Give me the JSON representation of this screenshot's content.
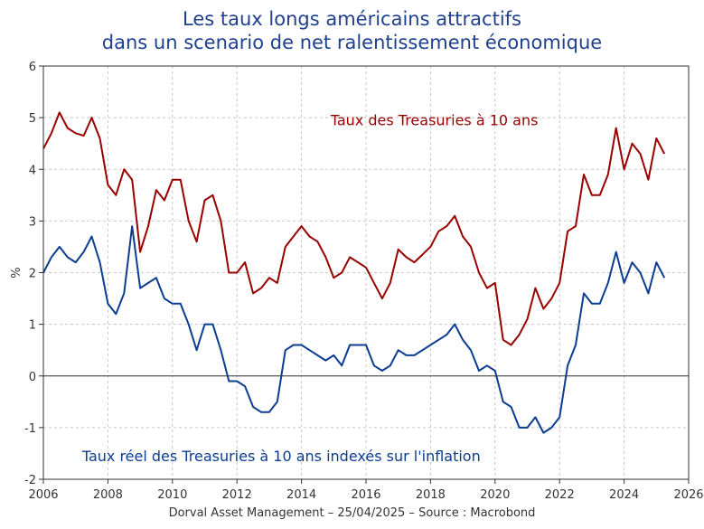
{
  "title": {
    "line1": "Les taux longs américains attractifs",
    "line2": "dans un scenario de net ralentissement économique"
  },
  "footer": {
    "text": "Dorval Asset Management – 25/04/2025 –  Source : Macrobond"
  },
  "colors": {
    "treasuries": "#990000",
    "real": "#0b3d91",
    "title": "#1f3f8f",
    "grid": "#c8c8c8",
    "zero_line": "#333333"
  },
  "chart_data": {
    "type": "line",
    "ylabel": "%",
    "xlabel": "",
    "xlim": [
      2006,
      2026
    ],
    "ylim": [
      -2,
      6
    ],
    "x_ticks": [
      "2006",
      "2008",
      "2010",
      "2012",
      "2014",
      "2016",
      "2018",
      "2020",
      "2022",
      "2024",
      "2026"
    ],
    "y_ticks": [
      "-2",
      "-1",
      "0",
      "1",
      "2",
      "3",
      "4",
      "5",
      "6"
    ],
    "grid": true,
    "series": [
      {
        "name": "Taux des Treasuries à 10 ans",
        "color": "#990000",
        "x": [
          2006.0,
          2006.25,
          2006.5,
          2006.75,
          2007.0,
          2007.25,
          2007.5,
          2007.75,
          2008.0,
          2008.25,
          2008.5,
          2008.75,
          2009.0,
          2009.25,
          2009.5,
          2009.75,
          2010.0,
          2010.25,
          2010.5,
          2010.75,
          2011.0,
          2011.25,
          2011.5,
          2011.75,
          2012.0,
          2012.25,
          2012.5,
          2012.75,
          2013.0,
          2013.25,
          2013.5,
          2013.75,
          2014.0,
          2014.25,
          2014.5,
          2014.75,
          2015.0,
          2015.25,
          2015.5,
          2015.75,
          2016.0,
          2016.25,
          2016.5,
          2016.75,
          2017.0,
          2017.25,
          2017.5,
          2017.75,
          2018.0,
          2018.25,
          2018.5,
          2018.75,
          2019.0,
          2019.25,
          2019.5,
          2019.75,
          2020.0,
          2020.25,
          2020.5,
          2020.75,
          2021.0,
          2021.25,
          2021.5,
          2021.75,
          2022.0,
          2022.25,
          2022.5,
          2022.75,
          2023.0,
          2023.25,
          2023.5,
          2023.75,
          2024.0,
          2024.25,
          2024.5,
          2024.75,
          2025.0,
          2025.25
        ],
        "values": [
          4.4,
          4.7,
          5.1,
          4.8,
          4.7,
          4.65,
          5.0,
          4.6,
          3.7,
          3.5,
          4.0,
          3.8,
          2.4,
          2.9,
          3.6,
          3.4,
          3.8,
          3.8,
          3.0,
          2.6,
          3.4,
          3.5,
          3.0,
          2.0,
          2.0,
          2.2,
          1.6,
          1.7,
          1.9,
          1.8,
          2.5,
          2.7,
          2.9,
          2.7,
          2.6,
          2.3,
          1.9,
          2.0,
          2.3,
          2.2,
          2.1,
          1.8,
          1.5,
          1.8,
          2.45,
          2.3,
          2.2,
          2.35,
          2.5,
          2.8,
          2.9,
          3.1,
          2.7,
          2.5,
          2.0,
          1.7,
          1.8,
          0.7,
          0.6,
          0.8,
          1.1,
          1.7,
          1.3,
          1.5,
          1.8,
          2.8,
          2.9,
          3.9,
          3.5,
          3.5,
          3.9,
          4.8,
          4.0,
          4.5,
          4.3,
          3.8,
          4.6,
          4.3
        ]
      },
      {
        "name": "Taux réel des Treasuries à 10 ans indexés sur l'inflation",
        "color": "#0b3d91",
        "x": [
          2006.0,
          2006.25,
          2006.5,
          2006.75,
          2007.0,
          2007.25,
          2007.5,
          2007.75,
          2008.0,
          2008.25,
          2008.5,
          2008.75,
          2009.0,
          2009.25,
          2009.5,
          2009.75,
          2010.0,
          2010.25,
          2010.5,
          2010.75,
          2011.0,
          2011.25,
          2011.5,
          2011.75,
          2012.0,
          2012.25,
          2012.5,
          2012.75,
          2013.0,
          2013.25,
          2013.5,
          2013.75,
          2014.0,
          2014.25,
          2014.5,
          2014.75,
          2015.0,
          2015.25,
          2015.5,
          2015.75,
          2016.0,
          2016.25,
          2016.5,
          2016.75,
          2017.0,
          2017.25,
          2017.5,
          2017.75,
          2018.0,
          2018.25,
          2018.5,
          2018.75,
          2019.0,
          2019.25,
          2019.5,
          2019.75,
          2020.0,
          2020.25,
          2020.5,
          2020.75,
          2021.0,
          2021.25,
          2021.5,
          2021.75,
          2022.0,
          2022.25,
          2022.5,
          2022.75,
          2023.0,
          2023.25,
          2023.5,
          2023.75,
          2024.0,
          2024.25,
          2024.5,
          2024.75,
          2025.0,
          2025.25
        ],
        "values": [
          2.0,
          2.3,
          2.5,
          2.3,
          2.2,
          2.4,
          2.7,
          2.2,
          1.4,
          1.2,
          1.6,
          2.9,
          1.7,
          1.8,
          1.9,
          1.5,
          1.4,
          1.4,
          1.0,
          0.5,
          1.0,
          1.0,
          0.5,
          -0.1,
          -0.1,
          -0.2,
          -0.6,
          -0.7,
          -0.7,
          -0.5,
          0.5,
          0.6,
          0.6,
          0.5,
          0.4,
          0.3,
          0.4,
          0.2,
          0.6,
          0.6,
          0.6,
          0.2,
          0.1,
          0.2,
          0.5,
          0.4,
          0.4,
          0.5,
          0.6,
          0.7,
          0.8,
          1.0,
          0.7,
          0.5,
          0.1,
          0.2,
          0.1,
          -0.5,
          -0.6,
          -1.0,
          -1.0,
          -0.8,
          -1.1,
          -1.0,
          -0.8,
          0.2,
          0.6,
          1.6,
          1.4,
          1.4,
          1.8,
          2.4,
          1.8,
          2.2,
          2.0,
          1.6,
          2.2,
          1.9
        ]
      }
    ],
    "annotations": [
      {
        "text": "Taux des Treasuries à 10 ans",
        "x": 2014.9,
        "y": 4.85,
        "color": "#990000"
      },
      {
        "text": "Taux réel des Treasuries à 10 ans indexés sur l'inflation",
        "x": 2007.2,
        "y": -1.65,
        "color": "#0b3d91"
      }
    ]
  }
}
